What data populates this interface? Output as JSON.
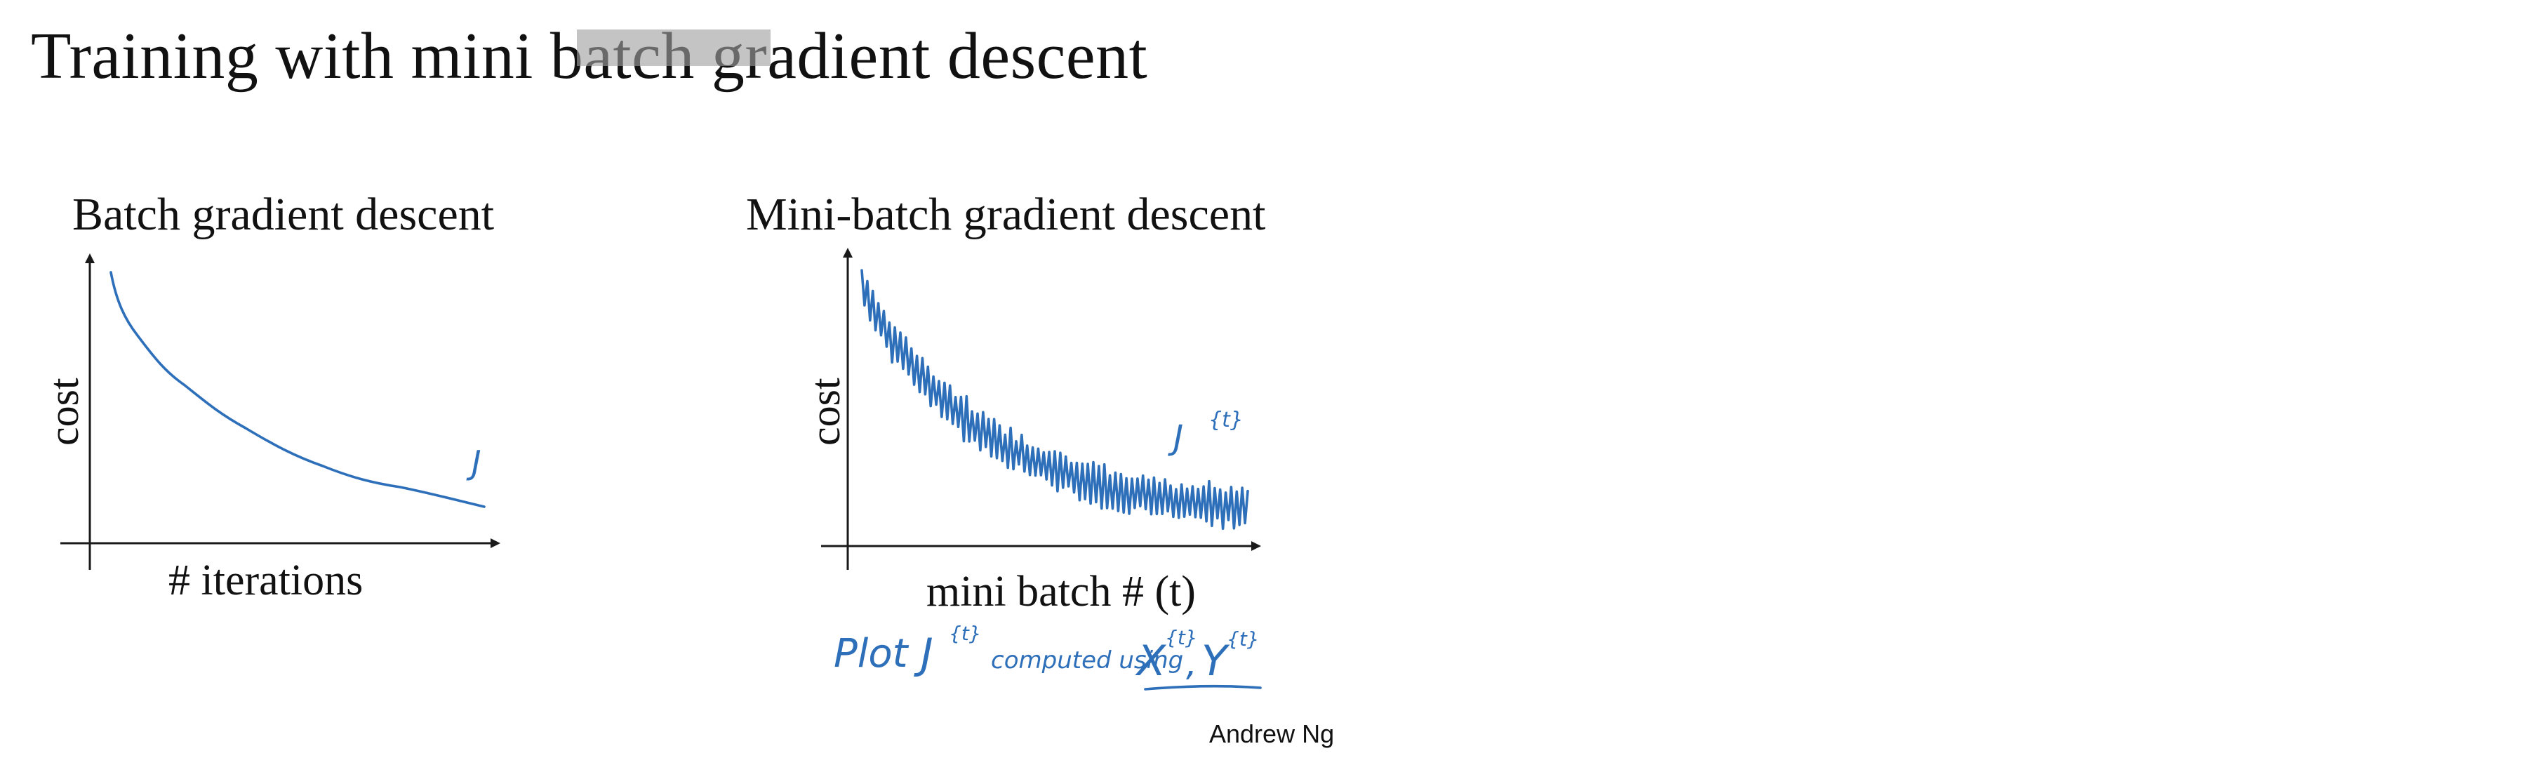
{
  "slide": {
    "title": "Training with mini batch gradient descent",
    "credit": "Andrew Ng"
  },
  "left_chart": {
    "title": "Batch gradient descent",
    "xlabel": "# iterations",
    "ylabel": "cost",
    "curve_label": "J"
  },
  "right_chart": {
    "title": "Mini-batch gradient descent",
    "xlabel": "mini batch # (t)",
    "ylabel": "cost",
    "curve_label": "J",
    "curve_label_sup": "{t}"
  },
  "annotation": {
    "plot_word": "Plot",
    "j_symbol": "J",
    "j_sup": "{t}",
    "computed_using": "computed using",
    "x_symbol": "X",
    "x_sup": "{t}",
    "comma": ",",
    "y_symbol": "Y",
    "y_sup": "{t}"
  },
  "colors": {
    "ink": "#2e6fba",
    "axis": "#1a1a1a",
    "overlay": "#a0a0a0"
  }
}
